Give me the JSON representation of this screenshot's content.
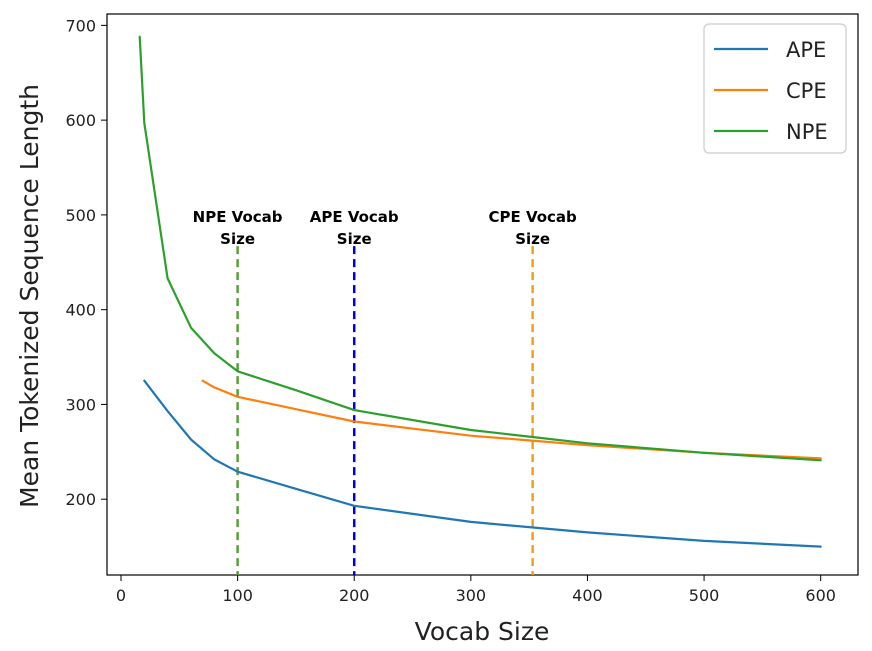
{
  "chart_data": {
    "type": "line",
    "xlabel": "Vocab Size",
    "ylabel": "Mean Tokenized Sequence Length",
    "xlim": [
      -12,
      632
    ],
    "ylim": [
      120,
      712
    ],
    "xticks": [
      0,
      100,
      200,
      300,
      400,
      500,
      600
    ],
    "yticks": [
      200,
      300,
      400,
      500,
      600,
      700
    ],
    "grid": false,
    "legend_position": "top-right",
    "series": [
      {
        "name": "APE",
        "color": "#1f77b4",
        "x": [
          20,
          40,
          60,
          80,
          100,
          150,
          200,
          300,
          400,
          500,
          600
        ],
        "y": [
          325,
          293,
          263,
          242,
          229,
          211,
          193,
          176,
          165,
          156,
          150
        ]
      },
      {
        "name": "CPE",
        "color": "#ff7f0e",
        "x": [
          70,
          80,
          100,
          150,
          200,
          300,
          350,
          400,
          500,
          600
        ],
        "y": [
          325,
          318,
          308,
          295,
          282,
          267,
          262,
          257,
          249,
          243
        ]
      },
      {
        "name": "NPE",
        "color": "#2ca02c",
        "x": [
          16,
          20,
          40,
          60,
          80,
          100,
          150,
          200,
          300,
          350,
          400,
          500,
          600
        ],
        "y": [
          688,
          597,
          433,
          381,
          354,
          335,
          315,
          294,
          273,
          266,
          259,
          249,
          241
        ]
      }
    ],
    "annotations": [
      {
        "label_line1": "NPE Vocab",
        "label_line2": "Size",
        "x": 100,
        "color": "#5a9e3a"
      },
      {
        "label_line1": "APE Vocab",
        "label_line2": "Size",
        "x": 200,
        "color": "#0000dd"
      },
      {
        "label_line1": "CPE Vocab",
        "label_line2": "Size",
        "x": 353,
        "color": "#f0a020"
      }
    ]
  }
}
